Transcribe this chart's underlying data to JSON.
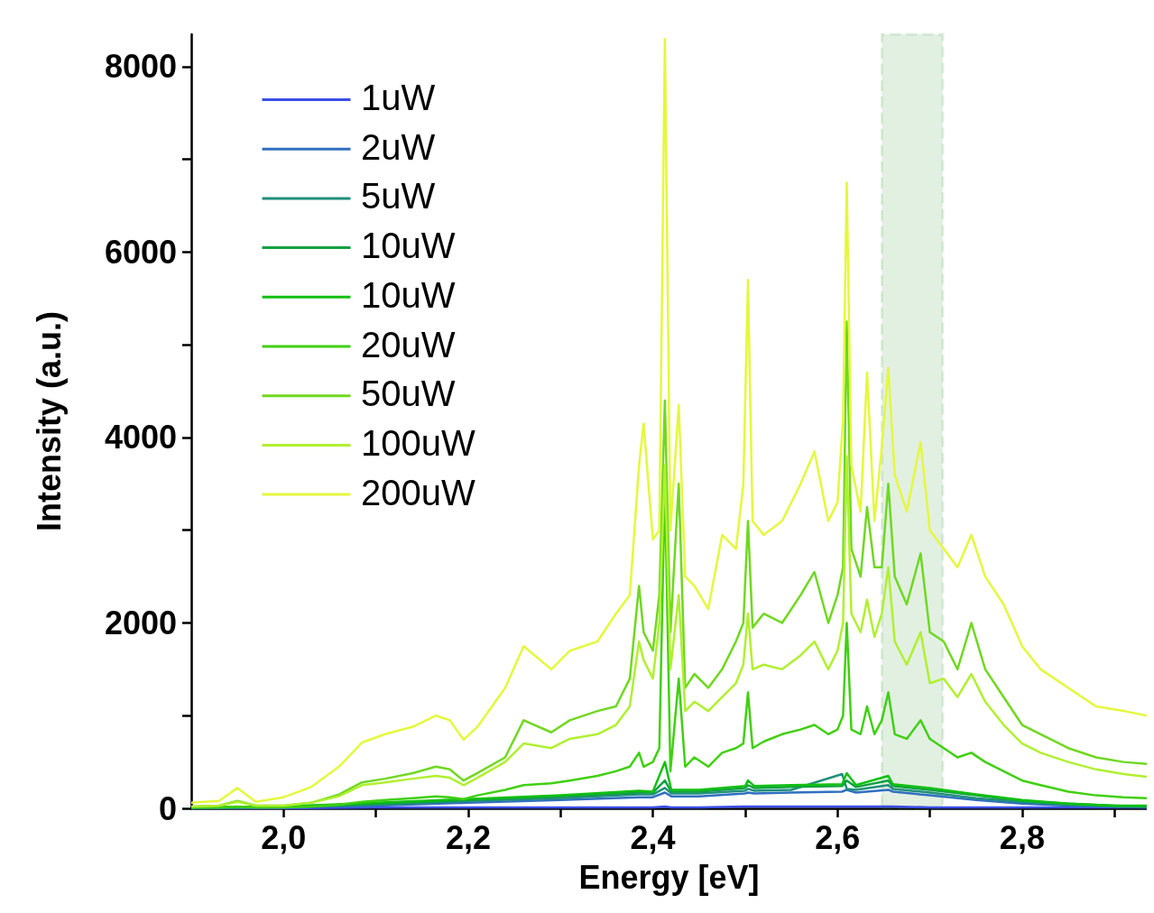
{
  "chart_data": {
    "type": "line",
    "xlabel": "Energy [eV]",
    "ylabel": "Intensity (a.u.)",
    "x": [
      1.9,
      1.93,
      1.95,
      1.97,
      2.0,
      2.03,
      2.06,
      2.085,
      2.11,
      2.14,
      2.165,
      2.18,
      2.195,
      2.21,
      2.24,
      2.26,
      2.29,
      2.31,
      2.34,
      2.36,
      2.375,
      2.385,
      2.39,
      2.4,
      2.407,
      2.413,
      2.419,
      2.428,
      2.435,
      2.445,
      2.46,
      2.475,
      2.49,
      2.498,
      2.503,
      2.508,
      2.52,
      2.54,
      2.56,
      2.575,
      2.59,
      2.6,
      2.606,
      2.61,
      2.615,
      2.625,
      2.632,
      2.64,
      2.648,
      2.655,
      2.662,
      2.675,
      2.69,
      2.7,
      2.715,
      2.73,
      2.745,
      2.76,
      2.78,
      2.8,
      2.82,
      2.85,
      2.88,
      2.91,
      2.935
    ],
    "series": [
      {
        "name": "1uW",
        "color": "#3a4ee8",
        "x": [
          1.9,
          2.0,
          2.1,
          2.2,
          2.3,
          2.385,
          2.4,
          2.413,
          2.42,
          2.45,
          2.5,
          2.503,
          2.51,
          2.55,
          2.605,
          2.61,
          2.62,
          2.655,
          2.66,
          2.7,
          2.75,
          2.8,
          2.85,
          2.9,
          2.935
        ],
        "values": [
          0,
          0,
          10,
          10,
          10,
          10,
          10,
          20,
          10,
          10,
          20,
          20,
          20,
          20,
          20,
          20,
          20,
          20,
          20,
          10,
          10,
          10,
          10,
          10,
          10
        ]
      },
      {
        "name": "2uW",
        "color": "#3070c0",
        "x": [
          1.9,
          2.0,
          2.1,
          2.2,
          2.3,
          2.385,
          2.4,
          2.413,
          2.42,
          2.45,
          2.5,
          2.503,
          2.51,
          2.55,
          2.605,
          2.61,
          2.62,
          2.655,
          2.66,
          2.7,
          2.75,
          2.8,
          2.85,
          2.9,
          2.935
        ],
        "values": [
          0,
          10,
          30,
          60,
          90,
          120,
          120,
          170,
          130,
          130,
          160,
          170,
          160,
          170,
          180,
          200,
          170,
          200,
          180,
          140,
          90,
          50,
          30,
          20,
          10
        ]
      },
      {
        "name": "5uW",
        "color": "#20907a",
        "x": [
          1.9,
          2.0,
          2.1,
          2.2,
          2.3,
          2.385,
          2.4,
          2.413,
          2.42,
          2.45,
          2.5,
          2.503,
          2.51,
          2.55,
          2.605,
          2.61,
          2.62,
          2.655,
          2.66,
          2.7,
          2.75,
          2.8,
          2.85,
          2.9,
          2.935
        ],
        "values": [
          0,
          10,
          40,
          80,
          110,
          150,
          150,
          220,
          160,
          160,
          190,
          210,
          190,
          200,
          370,
          210,
          200,
          250,
          210,
          170,
          110,
          70,
          40,
          20,
          20
        ]
      },
      {
        "name": "10uW",
        "color": "#10a040",
        "x": [
          1.9,
          2.0,
          2.1,
          2.2,
          2.3,
          2.385,
          2.4,
          2.413,
          2.42,
          2.45,
          2.5,
          2.503,
          2.51,
          2.55,
          2.605,
          2.61,
          2.62,
          2.655,
          2.66,
          2.7,
          2.75,
          2.8,
          2.85,
          2.9,
          2.935
        ],
        "values": [
          10,
          20,
          50,
          90,
          130,
          170,
          170,
          300,
          180,
          180,
          220,
          250,
          220,
          230,
          240,
          300,
          230,
          300,
          240,
          200,
          140,
          80,
          50,
          30,
          20
        ]
      },
      {
        "name": "10uW",
        "color": "#10c010",
        "x": [
          1.9,
          2.0,
          2.1,
          2.2,
          2.3,
          2.385,
          2.4,
          2.413,
          2.42,
          2.45,
          2.5,
          2.503,
          2.51,
          2.55,
          2.605,
          2.61,
          2.62,
          2.655,
          2.66,
          2.7,
          2.75,
          2.8,
          2.85,
          2.9,
          2.935
        ],
        "values": [
          10,
          20,
          60,
          100,
          140,
          190,
          180,
          500,
          200,
          200,
          240,
          300,
          240,
          250,
          260,
          380,
          250,
          350,
          260,
          220,
          150,
          90,
          50,
          30,
          30
        ]
      },
      {
        "name": "20uW",
        "color": "#40d010",
        "values": [
          10,
          10,
          20,
          10,
          10,
          20,
          40,
          70,
          90,
          110,
          130,
          120,
          100,
          140,
          200,
          250,
          270,
          300,
          350,
          400,
          450,
          600,
          450,
          500,
          650,
          3500,
          400,
          1400,
          450,
          550,
          450,
          600,
          650,
          700,
          1250,
          650,
          720,
          800,
          850,
          900,
          800,
          850,
          1000,
          2000,
          850,
          800,
          1100,
          800,
          950,
          1250,
          800,
          750,
          950,
          750,
          650,
          550,
          600,
          500,
          400,
          300,
          250,
          180,
          140,
          120,
          110
        ]
      },
      {
        "name": "50uW",
        "color": "#70d820",
        "values": [
          20,
          30,
          80,
          30,
          30,
          60,
          150,
          280,
          320,
          380,
          450,
          420,
          300,
          380,
          550,
          950,
          820,
          950,
          1050,
          1100,
          1400,
          2400,
          1900,
          1700,
          2300,
          4400,
          1900,
          3500,
          1300,
          1450,
          1300,
          1500,
          1800,
          2000,
          3100,
          1950,
          2100,
          2000,
          2300,
          2550,
          2000,
          2300,
          2600,
          5250,
          2800,
          2500,
          3250,
          2600,
          2600,
          3500,
          2500,
          2200,
          2750,
          1900,
          1800,
          1500,
          2000,
          1500,
          1200,
          900,
          800,
          650,
          550,
          500,
          480
        ]
      },
      {
        "name": "100uW",
        "color": "#b0f030",
        "values": [
          20,
          30,
          70,
          30,
          30,
          60,
          130,
          250,
          280,
          320,
          350,
          330,
          250,
          330,
          500,
          700,
          650,
          750,
          800,
          900,
          1100,
          1800,
          1600,
          1400,
          2000,
          3700,
          1500,
          2300,
          1050,
          1150,
          1050,
          1200,
          1350,
          1550,
          2100,
          1500,
          1550,
          1500,
          1650,
          1800,
          1500,
          1700,
          2000,
          3800,
          2100,
          1900,
          2250,
          1850,
          2100,
          2600,
          1800,
          1550,
          1900,
          1350,
          1400,
          1200,
          1450,
          1150,
          900,
          700,
          600,
          500,
          420,
          370,
          340
        ]
      },
      {
        "name": "200uW",
        "color": "#e4f83c",
        "values": [
          60,
          80,
          220,
          70,
          120,
          230,
          450,
          710,
          800,
          880,
          1000,
          950,
          740,
          880,
          1300,
          1750,
          1500,
          1700,
          1800,
          2100,
          2300,
          3700,
          4150,
          2900,
          3000,
          8300,
          3000,
          4350,
          2500,
          2400,
          2150,
          2950,
          2800,
          3500,
          5700,
          3100,
          2950,
          3100,
          3500,
          3850,
          3100,
          3300,
          4200,
          6750,
          3700,
          3200,
          4700,
          3100,
          3900,
          4750,
          3600,
          3200,
          3950,
          3000,
          2800,
          2600,
          2950,
          2500,
          2200,
          1750,
          1500,
          1300,
          1100,
          1050,
          1000
        ]
      }
    ],
    "xlim": [
      1.9,
      2.935
    ],
    "xticks": [
      {
        "value": 2.0,
        "label": "2,0"
      },
      {
        "value": 2.1,
        "label": null
      },
      {
        "value": 2.2,
        "label": "2,2"
      },
      {
        "value": 2.3,
        "label": null
      },
      {
        "value": 2.4,
        "label": "2,4"
      },
      {
        "value": 2.5,
        "label": null
      },
      {
        "value": 2.6,
        "label": "2,6"
      },
      {
        "value": 2.7,
        "label": null
      },
      {
        "value": 2.8,
        "label": "2,8"
      },
      {
        "value": 2.9,
        "label": null
      }
    ],
    "ylim": [
      0,
      8350
    ],
    "yticks": [
      0,
      {
        "value": 1000,
        "label": null
      },
      2000,
      {
        "value": 3000,
        "label": null
      },
      4000,
      {
        "value": 5000,
        "label": null
      },
      6000,
      {
        "value": 7000,
        "label": null
      },
      8000
    ],
    "bands": [
      {
        "axis": "x",
        "from": 2.648,
        "to": 2.714,
        "color": "#108010"
      }
    ],
    "legend": "top left",
    "grid": false,
    "marker": "none",
    "line_style": "solid"
  }
}
